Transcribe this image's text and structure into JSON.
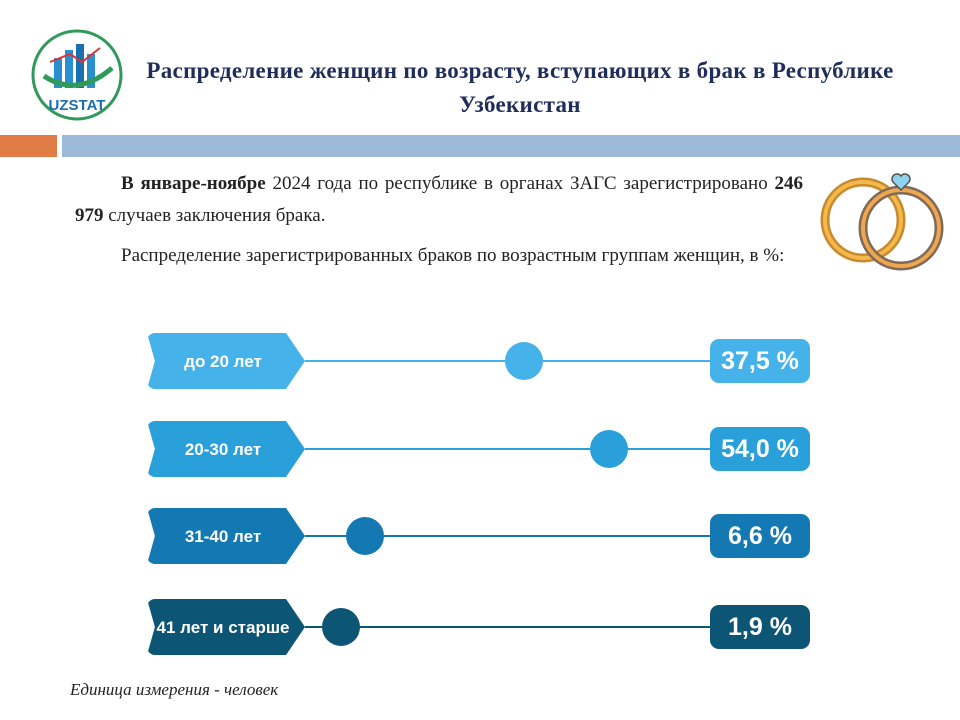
{
  "logo": "UZSTAT",
  "chart_data": {
    "type": "dot",
    "title": "Распределение женщин по возрасту, вступающих в брак в Республике Узбекистан",
    "paragraphs": [
      [
        {
          "text": "В январе-ноябре",
          "bold": true
        },
        {
          "text": " 2024 года по республике в органах ЗАГС зарегистрировано ",
          "bold": false
        },
        {
          "text": "246 979",
          "bold": true
        },
        {
          "text": " случаев заключения брака.",
          "bold": false
        }
      ],
      [
        {
          "text": "Распределение зарегистрированных браков по возрастным группам женщин, в %:",
          "bold": false
        }
      ]
    ],
    "categories": [
      "до 20 лет",
      "20-30 лет",
      "31-40 лет",
      "41 лет и старше"
    ],
    "values": [
      37.5,
      54.0,
      6.6,
      1.9
    ],
    "value_labels": [
      "37,5 %",
      "54,0 %",
      "6,6 %",
      "1,9 %"
    ],
    "colors": [
      "#45b3ea",
      "#2aa0da",
      "#1479b3",
      "#0d5574"
    ],
    "note": "Единица измерения - человек"
  }
}
